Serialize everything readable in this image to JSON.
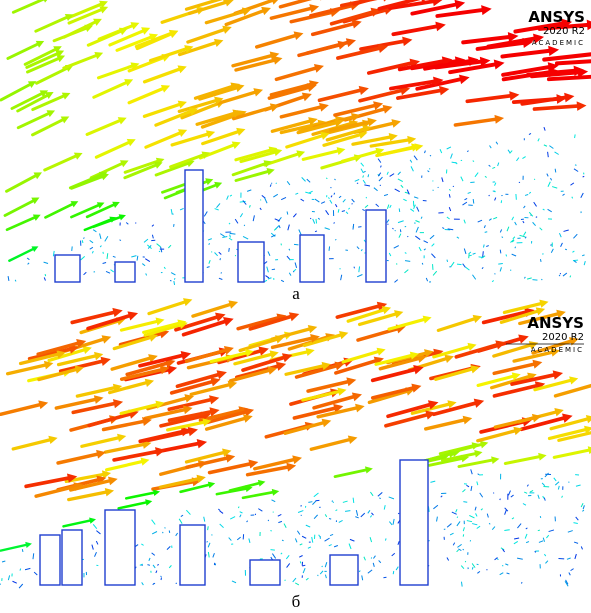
{
  "figures": [
    {
      "logo": {
        "name": "ANSYS",
        "version": "2020 R2",
        "edition": "ACADEMIC"
      },
      "caption": "а"
    },
    {
      "logo": {
        "name": "ANSYS",
        "version": "2020 R2",
        "edition": "ACADEMIC"
      },
      "caption": "б"
    }
  ]
}
